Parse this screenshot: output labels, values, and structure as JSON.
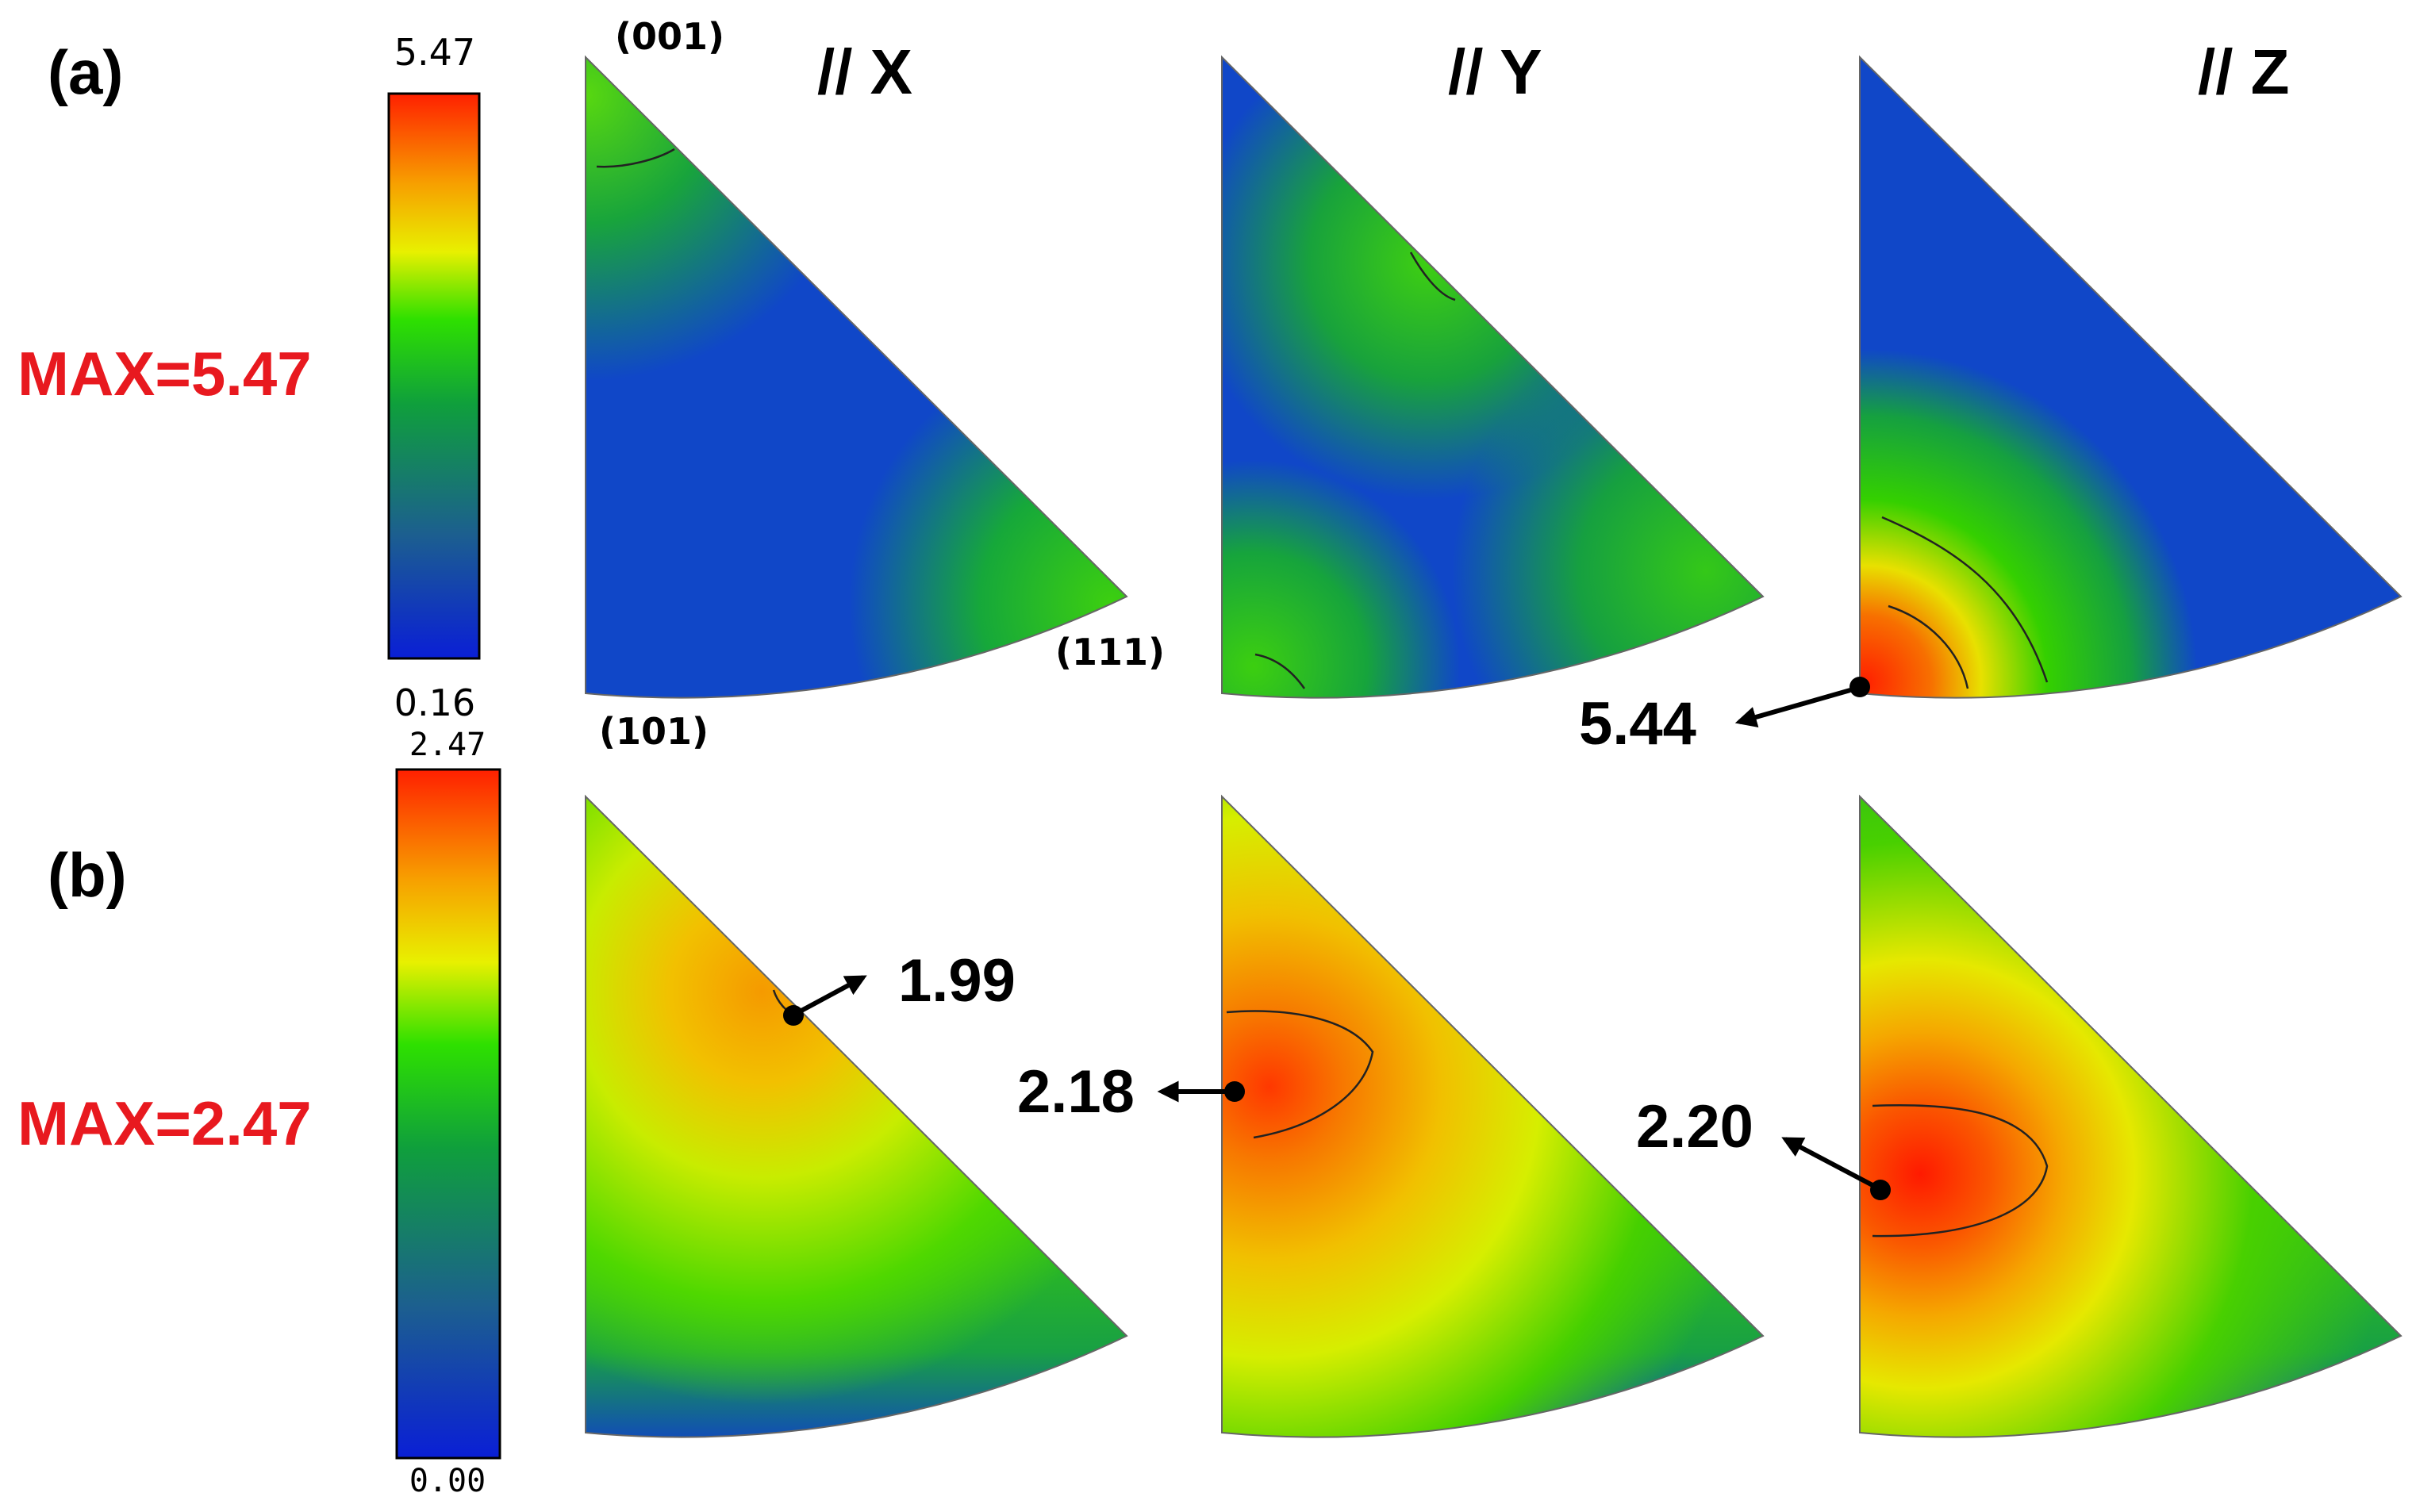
{
  "panels": {
    "a": {
      "label": "(a)",
      "max_label": "MAX=5.47",
      "scale": {
        "max": "5.47",
        "min": "0.16"
      },
      "annotation": "5.44"
    },
    "b": {
      "label": "(b)",
      "max_label": "MAX=2.47",
      "scale": {
        "max": "2.47",
        "min": "0.00"
      },
      "annotations": {
        "x": "1.99",
        "y": "2.18",
        "z": "2.20"
      }
    }
  },
  "columns": {
    "x": "// X",
    "y": "// Y",
    "z": "// Z"
  },
  "poles": {
    "p001": "(001)",
    "p111": "(111)",
    "p101": "(101)"
  },
  "colors": {
    "colormap": [
      "#0a1fd6",
      "#1c5f8f",
      "#0f9f3c",
      "#2ee000",
      "#e8f000",
      "#f7a000",
      "#ff2000"
    ],
    "max_label": "#e8191f"
  },
  "chart_data": [
    {
      "type": "heatmap",
      "title": "(a)",
      "colorbar_range": [
        0.16,
        5.47
      ],
      "max_value": 5.47,
      "maps": [
        {
          "name": "// X",
          "hotspots": [
            {
              "pole": "(111)",
              "level": 2.5
            },
            {
              "pole": "(001)",
              "level": 2.3
            }
          ],
          "base_level": 1.0,
          "annotated_max": null
        },
        {
          "name": "// Y",
          "hotspots": [
            {
              "pole": "(101)",
              "level": 2.4
            },
            {
              "pole": "between (001) and (111)",
              "level": 2.4
            },
            {
              "pole": "(111)",
              "level": 2.2
            }
          ],
          "base_level": 1.0,
          "annotated_max": null
        },
        {
          "name": "// Z",
          "hotspots": [
            {
              "pole": "(101)",
              "level": 5.44
            }
          ],
          "base_level": 0.6,
          "annotated_max": 5.44
        }
      ]
    },
    {
      "type": "heatmap",
      "title": "(b)",
      "colorbar_range": [
        0.0,
        2.47
      ],
      "max_value": 2.47,
      "maps": [
        {
          "name": "// X",
          "hotspots": [
            {
              "pole": "(001)-(111) edge",
              "level": 1.99
            }
          ],
          "base_level": 1.0,
          "annotated_max": 1.99
        },
        {
          "name": "// Y",
          "hotspots": [
            {
              "pole": "(001)-(101) edge, upper",
              "level": 2.18
            }
          ],
          "base_level": 0.6,
          "annotated_max": 2.18
        },
        {
          "name": "// Z",
          "hotspots": [
            {
              "pole": "(001)-(101) edge, middle",
              "level": 2.2
            }
          ],
          "base_level": 0.7,
          "annotated_max": 2.2
        }
      ]
    }
  ]
}
